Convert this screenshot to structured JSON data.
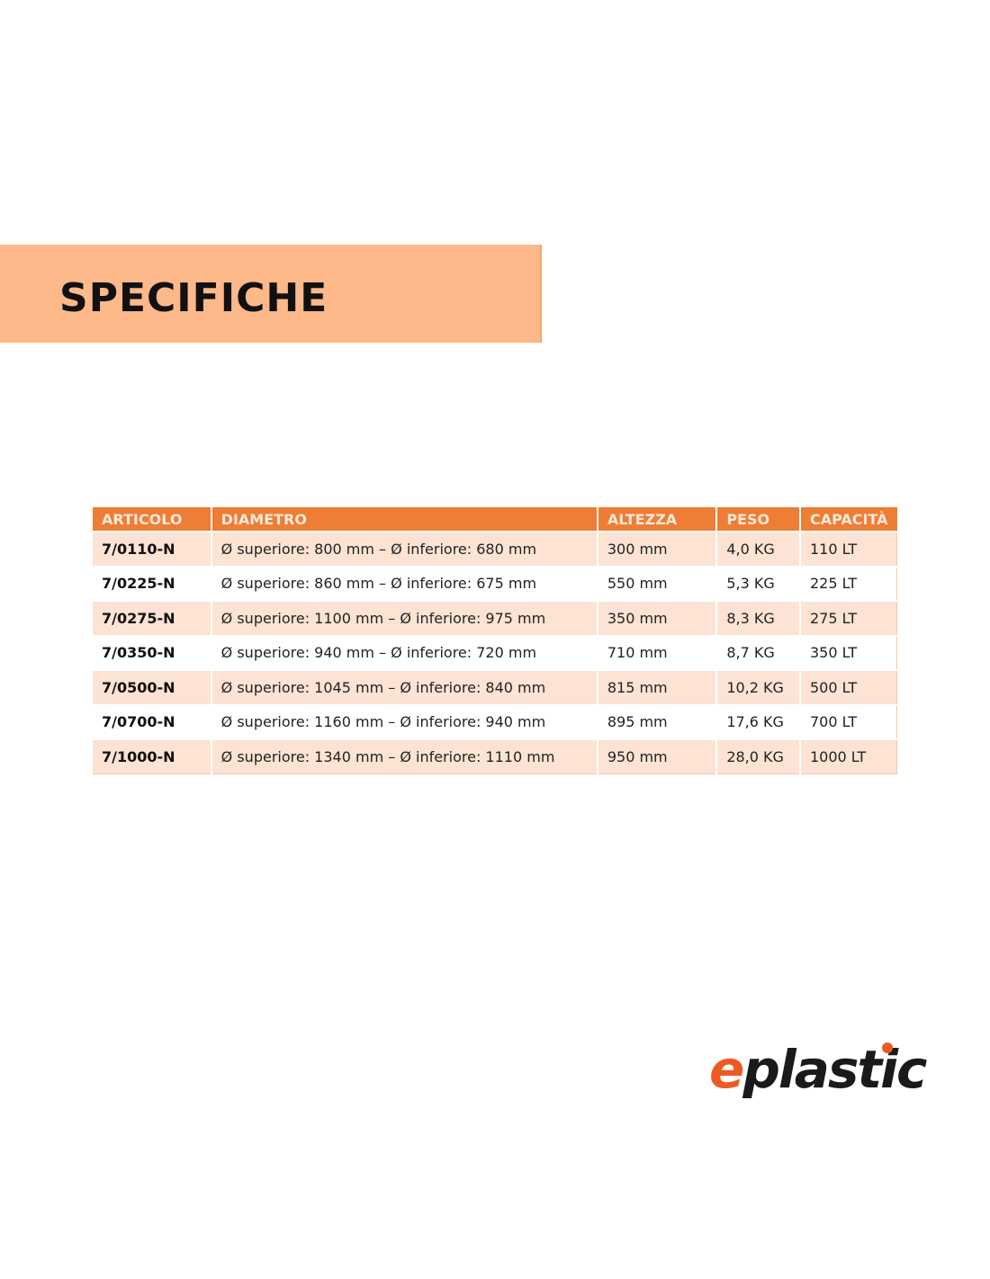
{
  "title": "SPECIFICHE",
  "table": {
    "headers": [
      "ARTICOLO",
      "DIAMETRO",
      "ALTEZZA",
      "PESO",
      "CAPACITÀ"
    ],
    "rows": [
      [
        "7/0110-N",
        "Ø superiore: 800 mm – Ø inferiore: 680 mm",
        "300 mm",
        "4,0 KG",
        "110 LT"
      ],
      [
        "7/0225-N",
        "Ø superiore: 860 mm – Ø inferiore: 675 mm",
        "550 mm",
        "5,3 KG",
        "225 LT"
      ],
      [
        "7/0275-N",
        "Ø superiore: 1100 mm – Ø inferiore: 975 mm",
        "350 mm",
        "8,3 KG",
        "275 LT"
      ],
      [
        "7/0350-N",
        "Ø superiore: 940 mm – Ø inferiore: 720 mm",
        "710 mm",
        "8,7 KG",
        "350 LT"
      ],
      [
        "7/0500-N",
        "Ø superiore: 1045 mm – Ø inferiore: 840 mm",
        "815 mm",
        "10,2 KG",
        "500 LT"
      ],
      [
        "7/0700-N",
        "Ø superiore: 1160 mm – Ø inferiore: 940 mm",
        "895 mm",
        "17,6 KG",
        "700 LT"
      ],
      [
        "7/1000-N",
        "Ø superiore: 1340 mm – Ø inferiore: 1110 mm",
        "950 mm",
        "28,0 KG",
        "1000 LT"
      ]
    ]
  },
  "logo": {
    "e": "e",
    "rest": "plastic"
  },
  "colors": {
    "accent": "#ee7d35",
    "banner": "#fdb98a",
    "row_alt": "#fce3d3",
    "logo_orange": "#ee5a24"
  }
}
